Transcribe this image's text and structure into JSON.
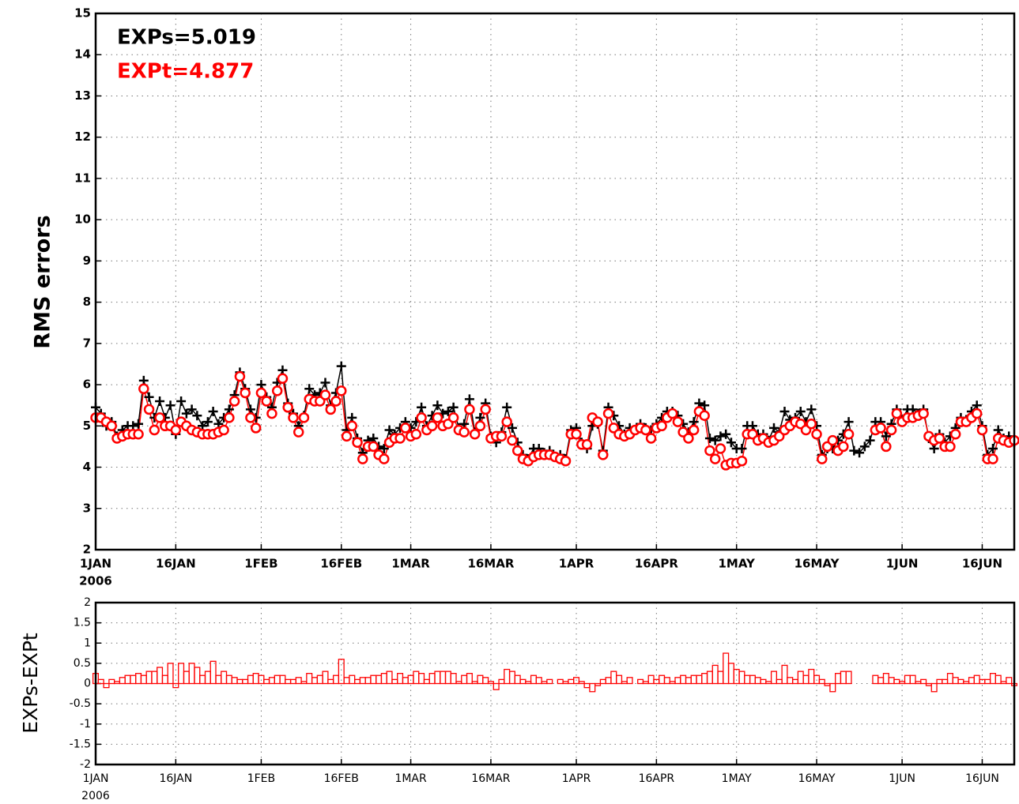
{
  "chart_data": [
    {
      "type": "line",
      "annotations": [
        {
          "text": "EXPs=5.019",
          "color": "#000000"
        },
        {
          "text": "EXPt=4.877",
          "color": "#ff0000"
        }
      ],
      "ylabel": "RMS errors",
      "x": [
        "2006-01-01",
        "2006-01-02",
        "2006-01-03",
        "2006-01-04",
        "2006-01-05",
        "2006-01-06",
        "2006-01-07",
        "2006-01-08",
        "2006-01-09",
        "2006-01-10",
        "2006-01-11",
        "2006-01-12",
        "2006-01-13",
        "2006-01-14",
        "2006-01-15",
        "2006-01-16",
        "2006-01-17",
        "2006-01-18",
        "2006-01-19",
        "2006-01-20",
        "2006-01-21",
        "2006-01-22",
        "2006-01-23",
        "2006-01-24",
        "2006-01-25",
        "2006-01-26",
        "2006-01-27",
        "2006-01-28",
        "2006-01-29",
        "2006-01-30",
        "2006-01-31",
        "2006-02-01",
        "2006-02-02",
        "2006-02-03",
        "2006-02-04",
        "2006-02-05",
        "2006-02-06",
        "2006-02-07",
        "2006-02-08",
        "2006-02-09",
        "2006-02-10",
        "2006-02-11",
        "2006-02-12",
        "2006-02-13",
        "2006-02-14",
        "2006-02-15",
        "2006-02-16",
        "2006-02-17",
        "2006-02-18",
        "2006-02-19",
        "2006-02-20",
        "2006-02-21",
        "2006-02-22",
        "2006-02-23",
        "2006-02-24",
        "2006-02-25",
        "2006-02-26",
        "2006-02-27",
        "2006-02-28",
        "2006-03-01",
        "2006-03-02",
        "2006-03-03",
        "2006-03-04",
        "2006-03-05",
        "2006-03-06",
        "2006-03-07",
        "2006-03-08",
        "2006-03-09",
        "2006-03-10",
        "2006-03-11",
        "2006-03-12",
        "2006-03-13",
        "2006-03-14",
        "2006-03-15",
        "2006-03-16",
        "2006-03-17",
        "2006-03-18",
        "2006-03-19",
        "2006-03-20",
        "2006-03-21",
        "2006-03-22",
        "2006-03-23",
        "2006-03-24",
        "2006-03-25",
        "2006-03-26",
        "2006-03-27",
        "2006-03-28",
        "2006-03-29",
        "2006-03-30",
        "2006-03-31",
        "2006-04-01",
        "2006-04-02",
        "2006-04-03",
        "2006-04-04",
        "2006-04-05",
        "2006-04-06",
        "2006-04-07",
        "2006-04-08",
        "2006-04-09",
        "2006-04-10",
        "2006-04-11",
        "2006-04-12",
        "2006-04-13",
        "2006-04-14",
        "2006-04-15",
        "2006-04-16",
        "2006-04-17",
        "2006-04-18",
        "2006-04-19",
        "2006-04-20",
        "2006-04-21",
        "2006-04-22",
        "2006-04-23",
        "2006-04-24",
        "2006-04-25",
        "2006-04-26",
        "2006-04-27",
        "2006-04-28",
        "2006-04-29",
        "2006-04-30",
        "2006-05-01",
        "2006-05-02",
        "2006-05-03",
        "2006-05-04",
        "2006-05-05",
        "2006-05-06",
        "2006-05-07",
        "2006-05-08",
        "2006-05-09",
        "2006-05-10",
        "2006-05-11",
        "2006-05-12",
        "2006-05-13",
        "2006-05-14",
        "2006-05-15",
        "2006-05-16",
        "2006-05-17",
        "2006-05-18",
        "2006-05-19",
        "2006-05-20",
        "2006-05-21",
        "2006-05-22",
        "2006-05-23",
        "2006-05-24",
        "2006-05-25",
        "2006-05-26",
        "2006-05-27",
        "2006-05-28",
        "2006-05-29",
        "2006-05-30",
        "2006-05-31",
        "2006-06-01",
        "2006-06-02",
        "2006-06-03",
        "2006-06-04",
        "2006-06-05",
        "2006-06-06",
        "2006-06-07",
        "2006-06-08",
        "2006-06-09",
        "2006-06-10",
        "2006-06-11",
        "2006-06-12",
        "2006-06-13",
        "2006-06-14",
        "2006-06-15",
        "2006-06-16",
        "2006-06-17",
        "2006-06-18",
        "2006-06-19",
        "2006-06-20",
        "2006-06-21",
        "2006-06-22"
      ],
      "xlim": [
        "2006-01-01",
        "2006-06-22"
      ],
      "xticks": [
        {
          "value": "2006-01-01",
          "label": "1JAN"
        },
        {
          "value": "2006-01-16",
          "label": "16JAN"
        },
        {
          "value": "2006-02-01",
          "label": "1FEB"
        },
        {
          "value": "2006-02-16",
          "label": "16FEB"
        },
        {
          "value": "2006-03-01",
          "label": "1MAR"
        },
        {
          "value": "2006-03-16",
          "label": "16MAR"
        },
        {
          "value": "2006-04-01",
          "label": "1APR"
        },
        {
          "value": "2006-04-16",
          "label": "16APR"
        },
        {
          "value": "2006-05-01",
          "label": "1MAY"
        },
        {
          "value": "2006-05-16",
          "label": "16MAY"
        },
        {
          "value": "2006-06-01",
          "label": "1JUN"
        },
        {
          "value": "2006-06-16",
          "label": "16JUN"
        }
      ],
      "x_sublabel": "2006",
      "ylim": [
        2,
        15
      ],
      "yticks": [
        2,
        3,
        4,
        5,
        6,
        7,
        8,
        9,
        10,
        11,
        12,
        13,
        14,
        15
      ],
      "grid": true,
      "series": [
        {
          "color": "#000000",
          "marker": "plus",
          "values": [
            5.45,
            5.3,
            5.0,
            5.1,
            4.75,
            4.9,
            5.0,
            5.0,
            5.05,
            6.1,
            5.7,
            5.2,
            5.6,
            5.2,
            5.5,
            4.8,
            5.6,
            5.3,
            5.4,
            5.25,
            5.0,
            5.1,
            5.35,
            5.05,
            5.2,
            5.4,
            5.75,
            6.3,
            5.9,
            5.4,
            5.2,
            6.0,
            5.7,
            5.45,
            6.05,
            6.35,
            5.55,
            5.3,
            5.0,
            5.25,
            5.9,
            5.75,
            5.8,
            6.05,
            5.5,
            5.8,
            6.45,
            4.9,
            5.2,
            4.7,
            4.35,
            4.65,
            4.7,
            4.5,
            4.45,
            4.9,
            4.8,
            4.95,
            5.1,
            4.95,
            5.1,
            5.45,
            5.0,
            5.25,
            5.5,
            5.3,
            5.35,
            5.45,
            4.95,
            5.05,
            5.65,
            4.85,
            5.2,
            5.55,
            4.75,
            4.6,
            4.85,
            5.45,
            4.95,
            4.6,
            4.3,
            4.2,
            4.45,
            4.45,
            4.35,
            4.4,
            4.25,
            4.3,
            4.2,
            4.9,
            4.95,
            4.6,
            4.45,
            5.0,
            5.05,
            4.4,
            5.45,
            5.25,
            5.0,
            4.8,
            4.95,
            4.9,
            5.05,
            4.95,
            4.9,
            5.05,
            5.2,
            5.35,
            5.35,
            5.25,
            5.05,
            4.85,
            5.1,
            5.55,
            5.5,
            4.7,
            4.65,
            4.75,
            4.8,
            4.6,
            4.45,
            4.45,
            5.0,
            5.0,
            4.8,
            4.8,
            4.65,
            4.95,
            4.85,
            5.35,
            5.15,
            5.2,
            5.35,
            5.1,
            5.4,
            5.0,
            4.3,
            4.45,
            4.45,
            4.65,
            4.8,
            5.1,
            4.4,
            4.35,
            4.5,
            4.65,
            5.1,
            5.1,
            4.75,
            5.05,
            5.4,
            5.15,
            5.4,
            5.4,
            5.3,
            5.4,
            4.7,
            4.45,
            4.8,
            4.6,
            4.75,
            4.95,
            5.2,
            5.15,
            5.35,
            5.5,
            5.0,
            4.3,
            4.45,
            4.9,
            4.7,
            4.75,
            4.6
          ]
        },
        {
          "color": "#ff0000",
          "marker": "circle",
          "values": [
            5.2,
            5.2,
            5.1,
            5.0,
            4.7,
            4.75,
            4.8,
            4.8,
            4.8,
            5.9,
            5.4,
            4.9,
            5.2,
            5.0,
            5.0,
            4.9,
            5.1,
            5.0,
            4.9,
            4.85,
            4.8,
            4.8,
            4.8,
            4.85,
            4.9,
            5.2,
            5.6,
            6.2,
            5.8,
            5.2,
            4.95,
            5.8,
            5.6,
            5.3,
            5.85,
            6.15,
            5.45,
            5.2,
            4.85,
            5.2,
            5.65,
            5.6,
            5.6,
            5.75,
            5.4,
            5.6,
            5.85,
            4.75,
            5.0,
            4.6,
            4.2,
            4.5,
            4.5,
            4.3,
            4.2,
            4.6,
            4.7,
            4.7,
            4.95,
            4.75,
            4.8,
            5.2,
            4.9,
            5.0,
            5.2,
            5.0,
            5.05,
            5.2,
            4.9,
            4.85,
            5.4,
            4.8,
            5.0,
            5.4,
            4.7,
            4.75,
            4.75,
            5.1,
            4.65,
            4.4,
            4.2,
            4.15,
            4.25,
            4.3,
            4.3,
            4.3,
            4.25,
            4.2,
            4.15,
            4.8,
            4.8,
            4.55,
            4.55,
            5.2,
            5.1,
            4.3,
            5.3,
            4.95,
            4.8,
            4.75,
            4.8,
            4.9,
            4.95,
            4.9,
            4.7,
            4.95,
            5.0,
            5.2,
            5.3,
            5.1,
            4.85,
            4.7,
            4.9,
            5.35,
            5.25,
            4.4,
            4.2,
            4.45,
            4.05,
            4.1,
            4.1,
            4.15,
            4.8,
            4.8,
            4.65,
            4.7,
            4.6,
            4.65,
            4.75,
            4.9,
            5.0,
            5.1,
            5.05,
            4.9,
            5.05,
            4.8,
            4.2,
            4.5,
            4.65,
            4.4,
            4.5,
            4.8,
            null,
            null,
            null,
            null,
            4.9,
            4.95,
            4.5,
            4.9,
            5.3,
            5.1,
            5.2,
            5.2,
            5.25,
            5.3,
            4.75,
            4.65,
            4.7,
            4.5,
            4.5,
            4.8,
            5.1,
            5.1,
            5.2,
            5.3,
            4.9,
            4.2,
            4.2,
            4.7,
            4.65,
            4.6,
            4.65
          ]
        }
      ]
    },
    {
      "type": "bar",
      "ylabel": "EXPs-EXPt",
      "x": [
        "2006-01-01",
        "2006-01-02",
        "2006-01-03",
        "2006-01-04",
        "2006-01-05",
        "2006-01-06",
        "2006-01-07",
        "2006-01-08",
        "2006-01-09",
        "2006-01-10",
        "2006-01-11",
        "2006-01-12",
        "2006-01-13",
        "2006-01-14",
        "2006-01-15",
        "2006-01-16",
        "2006-01-17",
        "2006-01-18",
        "2006-01-19",
        "2006-01-20",
        "2006-01-21",
        "2006-01-22",
        "2006-01-23",
        "2006-01-24",
        "2006-01-25",
        "2006-01-26",
        "2006-01-27",
        "2006-01-28",
        "2006-01-29",
        "2006-01-30",
        "2006-01-31",
        "2006-02-01",
        "2006-02-02",
        "2006-02-03",
        "2006-02-04",
        "2006-02-05",
        "2006-02-06",
        "2006-02-07",
        "2006-02-08",
        "2006-02-09",
        "2006-02-10",
        "2006-02-11",
        "2006-02-12",
        "2006-02-13",
        "2006-02-14",
        "2006-02-15",
        "2006-02-16",
        "2006-02-17",
        "2006-02-18",
        "2006-02-19",
        "2006-02-20",
        "2006-02-21",
        "2006-02-22",
        "2006-02-23",
        "2006-02-24",
        "2006-02-25",
        "2006-02-26",
        "2006-02-27",
        "2006-02-28",
        "2006-03-01",
        "2006-03-02",
        "2006-03-03",
        "2006-03-04",
        "2006-03-05",
        "2006-03-06",
        "2006-03-07",
        "2006-03-08",
        "2006-03-09",
        "2006-03-10",
        "2006-03-11",
        "2006-03-12",
        "2006-03-13",
        "2006-03-14",
        "2006-03-15",
        "2006-03-16",
        "2006-03-17",
        "2006-03-18",
        "2006-03-19",
        "2006-03-20",
        "2006-03-21",
        "2006-03-22",
        "2006-03-23",
        "2006-03-24",
        "2006-03-25",
        "2006-03-26",
        "2006-03-27",
        "2006-03-28",
        "2006-03-29",
        "2006-03-30",
        "2006-03-31",
        "2006-04-01",
        "2006-04-02",
        "2006-04-03",
        "2006-04-04",
        "2006-04-05",
        "2006-04-06",
        "2006-04-07",
        "2006-04-08",
        "2006-04-09",
        "2006-04-10",
        "2006-04-11",
        "2006-04-12",
        "2006-04-13",
        "2006-04-14",
        "2006-04-15",
        "2006-04-16",
        "2006-04-17",
        "2006-04-18",
        "2006-04-19",
        "2006-04-20",
        "2006-04-21",
        "2006-04-22",
        "2006-04-23",
        "2006-04-24",
        "2006-04-25",
        "2006-04-26",
        "2006-04-27",
        "2006-04-28",
        "2006-04-29",
        "2006-04-30",
        "2006-05-01",
        "2006-05-02",
        "2006-05-03",
        "2006-05-04",
        "2006-05-05",
        "2006-05-06",
        "2006-05-07",
        "2006-05-08",
        "2006-05-09",
        "2006-05-10",
        "2006-05-11",
        "2006-05-12",
        "2006-05-13",
        "2006-05-14",
        "2006-05-15",
        "2006-05-16",
        "2006-05-17",
        "2006-05-18",
        "2006-05-19",
        "2006-05-20",
        "2006-05-21",
        "2006-05-22",
        "2006-05-23",
        "2006-05-24",
        "2006-05-25",
        "2006-05-26",
        "2006-05-27",
        "2006-05-28",
        "2006-05-29",
        "2006-05-30",
        "2006-05-31",
        "2006-06-01",
        "2006-06-02",
        "2006-06-03",
        "2006-06-04",
        "2006-06-05",
        "2006-06-06",
        "2006-06-07",
        "2006-06-08",
        "2006-06-09",
        "2006-06-10",
        "2006-06-11",
        "2006-06-12",
        "2006-06-13",
        "2006-06-14",
        "2006-06-15",
        "2006-06-16",
        "2006-06-17",
        "2006-06-18",
        "2006-06-19",
        "2006-06-20",
        "2006-06-21",
        "2006-06-22"
      ],
      "xlim": [
        "2006-01-01",
        "2006-06-22"
      ],
      "xticks": [
        {
          "value": "2006-01-01",
          "label": "1JAN"
        },
        {
          "value": "2006-01-16",
          "label": "16JAN"
        },
        {
          "value": "2006-02-01",
          "label": "1FEB"
        },
        {
          "value": "2006-02-16",
          "label": "16FEB"
        },
        {
          "value": "2006-03-01",
          "label": "1MAR"
        },
        {
          "value": "2006-03-16",
          "label": "16MAR"
        },
        {
          "value": "2006-04-01",
          "label": "1APR"
        },
        {
          "value": "2006-04-16",
          "label": "16APR"
        },
        {
          "value": "2006-05-01",
          "label": "1MAY"
        },
        {
          "value": "2006-05-16",
          "label": "16MAY"
        },
        {
          "value": "2006-06-01",
          "label": "1JUN"
        },
        {
          "value": "2006-06-16",
          "label": "16JUN"
        }
      ],
      "x_sublabel": "2006",
      "ylim": [
        -2,
        2
      ],
      "yticks": [
        -2,
        -1.5,
        -1,
        -0.5,
        0,
        0.5,
        1,
        1.5,
        2
      ],
      "grid": true,
      "color": "#ff0000",
      "values": [
        0.25,
        0.1,
        -0.1,
        0.1,
        0.05,
        0.15,
        0.2,
        0.2,
        0.25,
        0.2,
        0.3,
        0.3,
        0.4,
        0.2,
        0.5,
        -0.1,
        0.5,
        0.3,
        0.5,
        0.4,
        0.2,
        0.3,
        0.55,
        0.2,
        0.3,
        0.2,
        0.15,
        0.1,
        0.1,
        0.2,
        0.25,
        0.2,
        0.1,
        0.15,
        0.2,
        0.2,
        0.1,
        0.1,
        0.15,
        0.05,
        0.25,
        0.15,
        0.2,
        0.3,
        0.1,
        0.2,
        0.6,
        0.15,
        0.2,
        0.1,
        0.15,
        0.15,
        0.2,
        0.2,
        0.25,
        0.3,
        0.1,
        0.25,
        0.15,
        0.2,
        0.3,
        0.25,
        0.1,
        0.25,
        0.3,
        0.3,
        0.3,
        0.25,
        0.05,
        0.2,
        0.25,
        0.05,
        0.2,
        0.15,
        0.05,
        -0.15,
        0.1,
        0.35,
        0.3,
        0.2,
        0.1,
        0.05,
        0.2,
        0.15,
        0.05,
        0.1,
        0,
        0.1,
        0.05,
        0.1,
        0.15,
        0.05,
        -0.1,
        -0.2,
        -0.05,
        0.1,
        0.15,
        0.3,
        0.2,
        0.05,
        0.15,
        0,
        0.1,
        0.05,
        0.2,
        0.1,
        0.2,
        0.15,
        0.05,
        0.15,
        0.2,
        0.15,
        0.2,
        0.2,
        0.25,
        0.3,
        0.45,
        0.3,
        0.75,
        0.5,
        0.35,
        0.3,
        0.2,
        0.2,
        0.15,
        0.1,
        0.05,
        0.3,
        0.1,
        0.45,
        0.15,
        0.1,
        0.3,
        0.2,
        0.35,
        0.2,
        0.1,
        -0.05,
        -0.2,
        0.25,
        0.3,
        0.3,
        null,
        null,
        null,
        null,
        0.2,
        0.15,
        0.25,
        0.15,
        0.1,
        0.05,
        0.2,
        0.2,
        0.05,
        0.1,
        -0.05,
        -0.2,
        0.1,
        0.1,
        0.25,
        0.15,
        0.1,
        0.05,
        0.15,
        0.2,
        0.1,
        0.1,
        0.25,
        0.2,
        0.05,
        0.15,
        -0.05
      ]
    }
  ]
}
